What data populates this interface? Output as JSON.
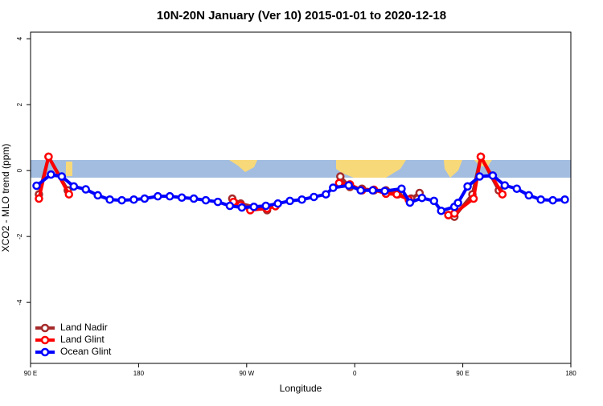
{
  "chart_data": {
    "type": "line",
    "title": "10N-20N January (Ver 10)   2015-01-01 to 2020-12-18",
    "x_label": "Longitude",
    "y_label": "XCO2 - MLO trend (ppm)",
    "xlim": [
      90,
      540
    ],
    "xticks": [
      {
        "value": 90,
        "label": "90 E"
      },
      {
        "value": 180,
        "label": "180"
      },
      {
        "value": 270,
        "label": "90 W"
      },
      {
        "value": 360,
        "label": "0"
      },
      {
        "value": 450,
        "label": "90 E"
      },
      {
        "value": 540,
        "label": "180"
      }
    ],
    "ylim": [
      -5.85,
      4.2
    ],
    "yticks": [
      -4,
      -2,
      0,
      2,
      4
    ],
    "legend": "bottomleft",
    "series": [
      {
        "name": "Land Nadir",
        "color": "#a52a2a",
        "x": [
          97,
          105,
          121,
          null,
          258,
          265,
          287,
          null,
          348,
          356,
          366,
          376,
          386,
          396,
          407,
          414,
          null,
          438,
          443,
          458,
          465,
          480
        ],
        "values": [
          -0.72,
          0.42,
          -0.6,
          null,
          -0.85,
          -1.0,
          -1.2,
          null,
          -0.18,
          -0.5,
          -0.55,
          -0.6,
          -0.6,
          -0.72,
          -0.85,
          -0.68,
          null,
          -1.35,
          -1.4,
          -0.72,
          0.42,
          -0.6
        ]
      },
      {
        "name": "Land Glint",
        "color": "#ff0000",
        "x": [
          97,
          105,
          122,
          null,
          259,
          265,
          273,
          287,
          294,
          null,
          347,
          356,
          366,
          376,
          386,
          395,
          405,
          null,
          438,
          443,
          459,
          465,
          483
        ],
        "values": [
          -0.85,
          0.42,
          -0.72,
          null,
          -0.95,
          -1.05,
          -1.2,
          -1.15,
          -1.08,
          null,
          -0.38,
          -0.42,
          -0.6,
          -0.58,
          -0.7,
          -0.72,
          -0.88,
          null,
          -1.35,
          -1.3,
          -0.85,
          0.42,
          -0.72
        ]
      },
      {
        "name": "Ocean Glint",
        "color": "#0000ff",
        "x": [
          95,
          107,
          116,
          126,
          136,
          146,
          156,
          166,
          176,
          185,
          196,
          206,
          216,
          226,
          236,
          246,
          256,
          266,
          276,
          286,
          296,
          306,
          316,
          326,
          336,
          342,
          355,
          365,
          375,
          385,
          399,
          406,
          416,
          426,
          432,
          443,
          446,
          454,
          464,
          475,
          485,
          495,
          505,
          515,
          525,
          535
        ],
        "values": [
          -0.46,
          -0.12,
          -0.18,
          -0.48,
          -0.57,
          -0.75,
          -0.88,
          -0.9,
          -0.88,
          -0.85,
          -0.78,
          -0.78,
          -0.82,
          -0.85,
          -0.9,
          -0.95,
          -1.07,
          -1.12,
          -1.1,
          -1.07,
          -1.0,
          -0.92,
          -0.88,
          -0.8,
          -0.72,
          -0.52,
          -0.45,
          -0.6,
          -0.6,
          -0.62,
          -0.55,
          -0.97,
          -0.83,
          -0.92,
          -1.22,
          -1.1,
          -0.98,
          -0.48,
          -0.18,
          -0.15,
          -0.45,
          -0.55,
          -0.75,
          -0.88,
          -0.9,
          -0.88
        ]
      }
    ]
  }
}
